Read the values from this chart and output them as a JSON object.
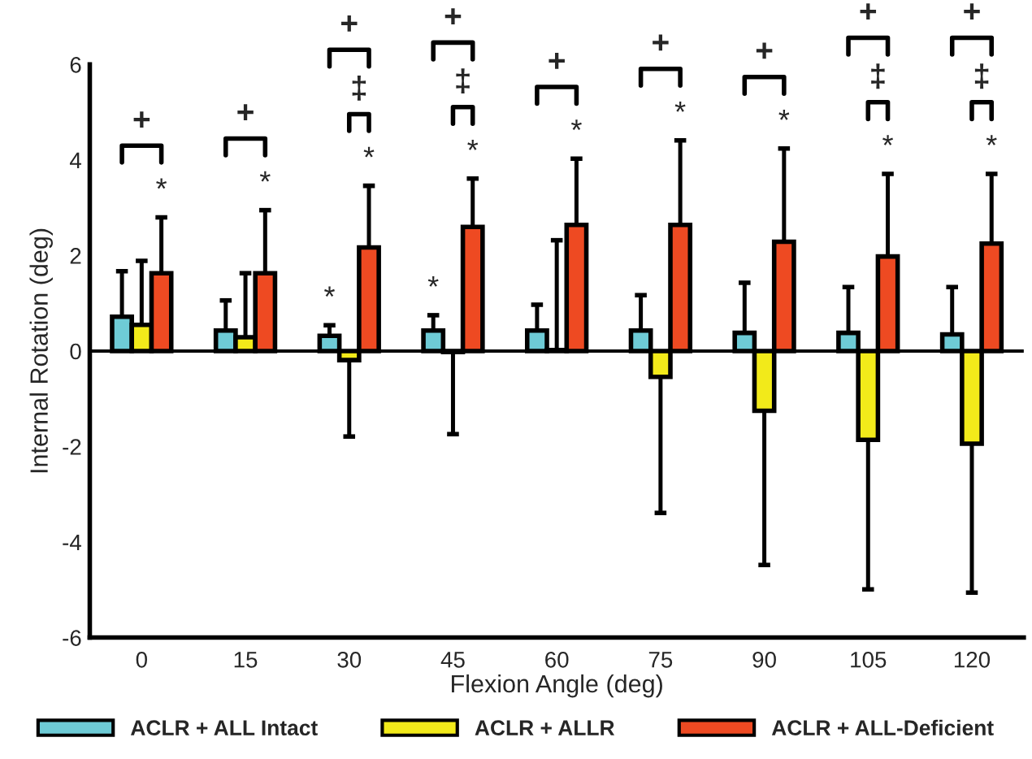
{
  "chart_data": {
    "type": "bar",
    "xlabel": "Flexion Angle (deg)",
    "ylabel": "Internal Rotation (deg)",
    "categories": [
      "0",
      "15",
      "30",
      "45",
      "60",
      "75",
      "90",
      "105",
      "120"
    ],
    "ylim": [
      -6,
      6
    ],
    "yticks": [
      -6,
      -4,
      -2,
      0,
      2,
      4,
      6
    ],
    "grid": false,
    "legend": "bottom",
    "ref_lines": [
      {
        "axis": "y",
        "value": 0,
        "color": "#000000"
      }
    ],
    "series": [
      {
        "name": "ACLR + ALL Intact",
        "color": "#6ecbd6",
        "values": [
          0.72,
          0.43,
          0.32,
          0.43,
          0.43,
          0.43,
          0.38,
          0.38,
          0.35
        ],
        "errors": [
          [
            0.72,
            1.67
          ],
          [
            0.43,
            1.06
          ],
          [
            0.32,
            0.54
          ],
          [
            0.43,
            0.75
          ],
          [
            0.43,
            0.97
          ],
          [
            0.43,
            1.17
          ],
          [
            0.38,
            1.43
          ],
          [
            0.38,
            1.34
          ],
          [
            0.35,
            1.34
          ]
        ]
      },
      {
        "name": "ACLR + ALLR",
        "color": "#f2ea1a",
        "values": [
          0.55,
          0.29,
          -0.19,
          -0.02,
          0.02,
          -0.54,
          -1.25,
          -1.86,
          -1.94
        ],
        "errors": [
          [
            0.55,
            1.89
          ],
          [
            0.29,
            1.63
          ],
          [
            -1.79,
            -0.19
          ],
          [
            -1.74,
            -0.02
          ],
          [
            0.02,
            2.32
          ],
          [
            -3.39,
            -0.54
          ],
          [
            -4.48,
            -1.25
          ],
          [
            -4.99,
            -1.86
          ],
          [
            -5.06,
            -1.94
          ]
        ]
      },
      {
        "name": "ACLR + ALL-Deficient",
        "color": "#ee4a22",
        "values": [
          1.63,
          1.63,
          2.17,
          2.6,
          2.64,
          2.64,
          2.29,
          1.98,
          2.25
        ],
        "errors": [
          [
            1.63,
            2.8
          ],
          [
            1.63,
            2.95
          ],
          [
            2.17,
            3.46
          ],
          [
            2.6,
            3.61
          ],
          [
            2.64,
            4.03
          ],
          [
            2.64,
            4.41
          ],
          [
            2.29,
            4.24
          ],
          [
            1.98,
            3.71
          ],
          [
            2.25,
            3.71
          ]
        ]
      }
    ],
    "annotations": [
      "*",
      "+",
      "*",
      "+",
      "*",
      "*",
      "‡",
      "+",
      "*",
      "*",
      "‡",
      "+",
      "*",
      "+",
      "*",
      "+",
      "*",
      "+",
      "*",
      "‡",
      "+",
      "*",
      "‡",
      "+"
    ]
  }
}
